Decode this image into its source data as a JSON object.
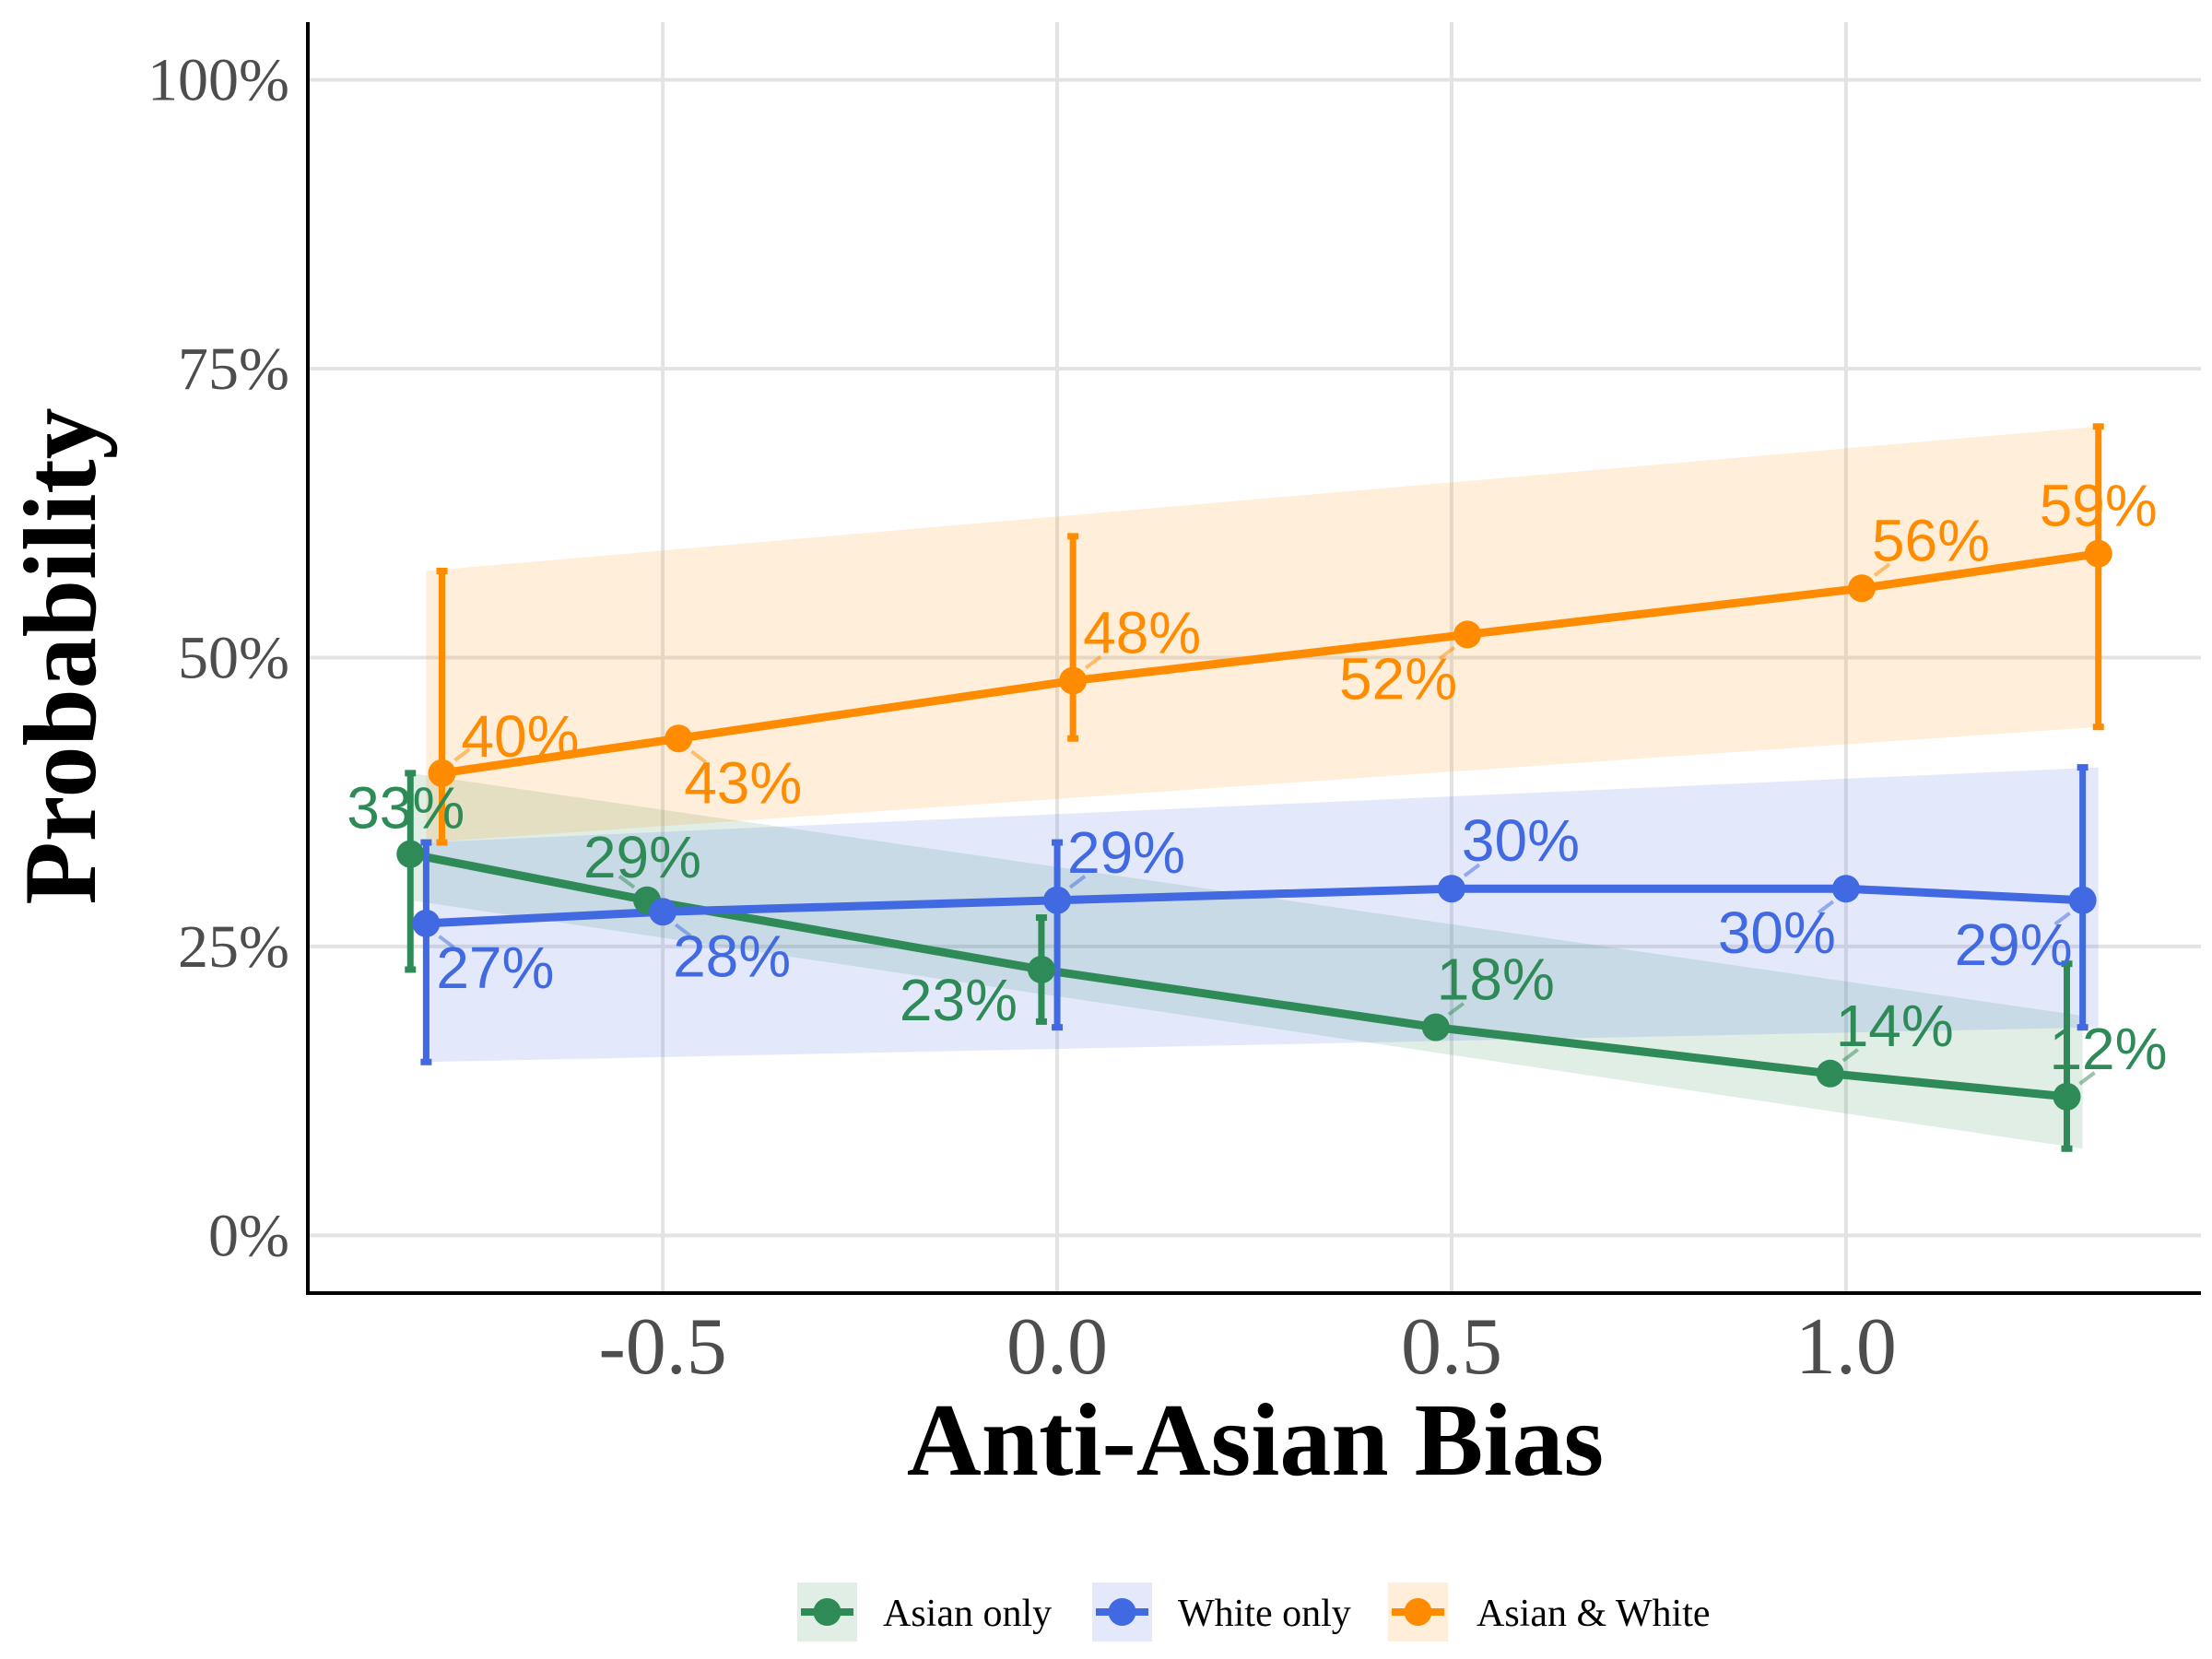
{
  "chart_data": {
    "type": "line",
    "title": "",
    "xlabel": "Anti-Asian Bias",
    "ylabel": "Probability",
    "xlim": [
      -0.95,
      1.45
    ],
    "ylim": [
      -0.05,
      1.05
    ],
    "x_ticks": [
      -0.5,
      0.0,
      0.5,
      1.0
    ],
    "x_tick_labels": [
      "-0.5",
      "0.0",
      "0.5",
      "1.0"
    ],
    "y_ticks": [
      0,
      0.25,
      0.5,
      0.75,
      1.0
    ],
    "y_tick_labels": [
      "0%",
      "25%",
      "50%",
      "75%",
      "100%"
    ],
    "grid": true,
    "legend_position": "bottom",
    "series": [
      {
        "name": "Asian only",
        "color": "#2e8b57",
        "x": [
          -0.82,
          -0.52,
          -0.02,
          0.48,
          0.98,
          1.28
        ],
        "y": [
          0.33,
          0.29,
          0.23,
          0.18,
          0.14,
          0.12
        ],
        "labels": [
          "33%",
          "29%",
          "23%",
          "18%",
          "14%",
          "12%"
        ],
        "error_bars": [
          {
            "x": -0.82,
            "lo": 0.23,
            "hi": 0.4
          },
          {
            "x": -0.02,
            "lo": 0.185,
            "hi": 0.275
          },
          {
            "x": 1.28,
            "lo": 0.075,
            "hi": 0.235
          }
        ],
        "band_x": [
          -0.82,
          1.3
        ],
        "band_lo": [
          0.29,
          0.075
        ],
        "band_hi": [
          0.4,
          0.19
        ]
      },
      {
        "name": "White only",
        "color": "#4169e1",
        "x": [
          -0.8,
          -0.5,
          0.0,
          0.5,
          1.0,
          1.3
        ],
        "y": [
          0.27,
          0.28,
          0.29,
          0.3,
          0.3,
          0.29
        ],
        "labels": [
          "27%",
          "28%",
          "29%",
          "30%",
          "30%",
          "29%"
        ],
        "error_bars": [
          {
            "x": -0.8,
            "lo": 0.15,
            "hi": 0.34
          },
          {
            "x": 0.0,
            "lo": 0.18,
            "hi": 0.34
          },
          {
            "x": 1.3,
            "lo": 0.18,
            "hi": 0.405
          }
        ],
        "band_x": [
          -0.8,
          1.32
        ],
        "band_lo": [
          0.15,
          0.18
        ],
        "band_hi": [
          0.34,
          0.405
        ]
      },
      {
        "name": "Asian & White",
        "color": "#ff8c00",
        "x": [
          -0.78,
          -0.48,
          0.02,
          0.52,
          1.02,
          1.32
        ],
        "y": [
          0.4,
          0.43,
          0.48,
          0.52,
          0.56,
          0.59
        ],
        "labels": [
          "40%",
          "43%",
          "48%",
          "52%",
          "56%",
          "59%"
        ],
        "error_bars": [
          {
            "x": -0.78,
            "lo": 0.34,
            "hi": 0.575
          },
          {
            "x": 0.02,
            "lo": 0.43,
            "hi": 0.605
          },
          {
            "x": 1.32,
            "lo": 0.44,
            "hi": 0.7
          }
        ],
        "band_x": [
          -0.8,
          1.32
        ],
        "band_lo": [
          0.34,
          0.44
        ],
        "band_hi": [
          0.575,
          0.7
        ]
      }
    ]
  }
}
